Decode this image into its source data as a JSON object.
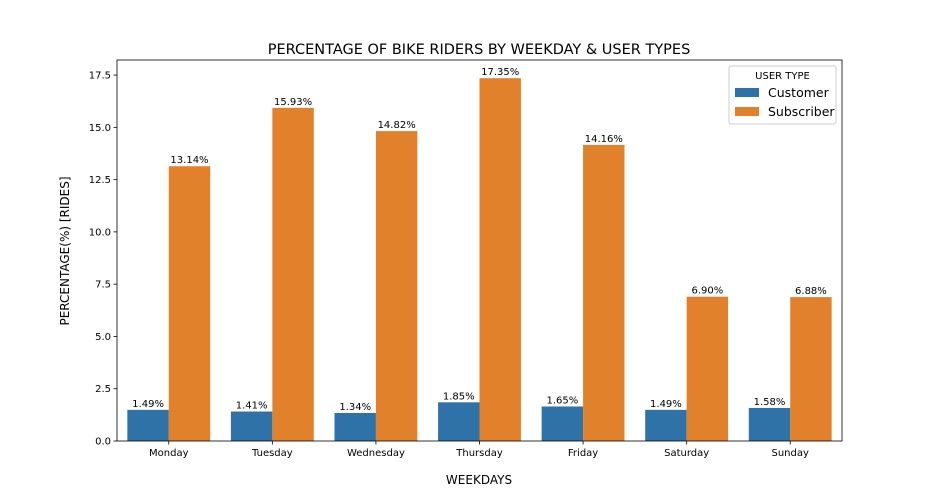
{
  "chart_data": {
    "type": "bar",
    "title": "PERCENTAGE OF BIKE RIDERS BY WEEKDAY & USER TYPES",
    "xlabel": "WEEKDAYS",
    "ylabel": "PERCENTAGE(%) [RIDES]",
    "categories": [
      "Monday",
      "Tuesday",
      "Wednesday",
      "Thursday",
      "Friday",
      "Saturday",
      "Sunday"
    ],
    "series": [
      {
        "name": "Customer",
        "color": "#2e72a8",
        "values": [
          1.49,
          1.41,
          1.34,
          1.85,
          1.65,
          1.49,
          1.58
        ],
        "labels": [
          "1.49%",
          "1.41%",
          "1.34%",
          "1.85%",
          "1.65%",
          "1.49%",
          "1.58%"
        ]
      },
      {
        "name": "Subscriber",
        "color": "#e1812c",
        "values": [
          13.14,
          15.93,
          14.82,
          17.35,
          14.16,
          6.9,
          6.88
        ],
        "labels": [
          "13.14%",
          "15.93%",
          "14.82%",
          "17.35%",
          "14.16%",
          "6.90%",
          "6.88%"
        ]
      }
    ],
    "ylim": [
      0,
      18.22
    ],
    "yticks": [
      0.0,
      2.5,
      5.0,
      7.5,
      10.0,
      12.5,
      15.0,
      17.5
    ],
    "ytick_labels": [
      "0.0",
      "2.5",
      "5.0",
      "7.5",
      "10.0",
      "12.5",
      "15.0",
      "17.5"
    ],
    "grid": false,
    "legend": {
      "title": "USER TYPE",
      "placement": "top-right"
    }
  }
}
